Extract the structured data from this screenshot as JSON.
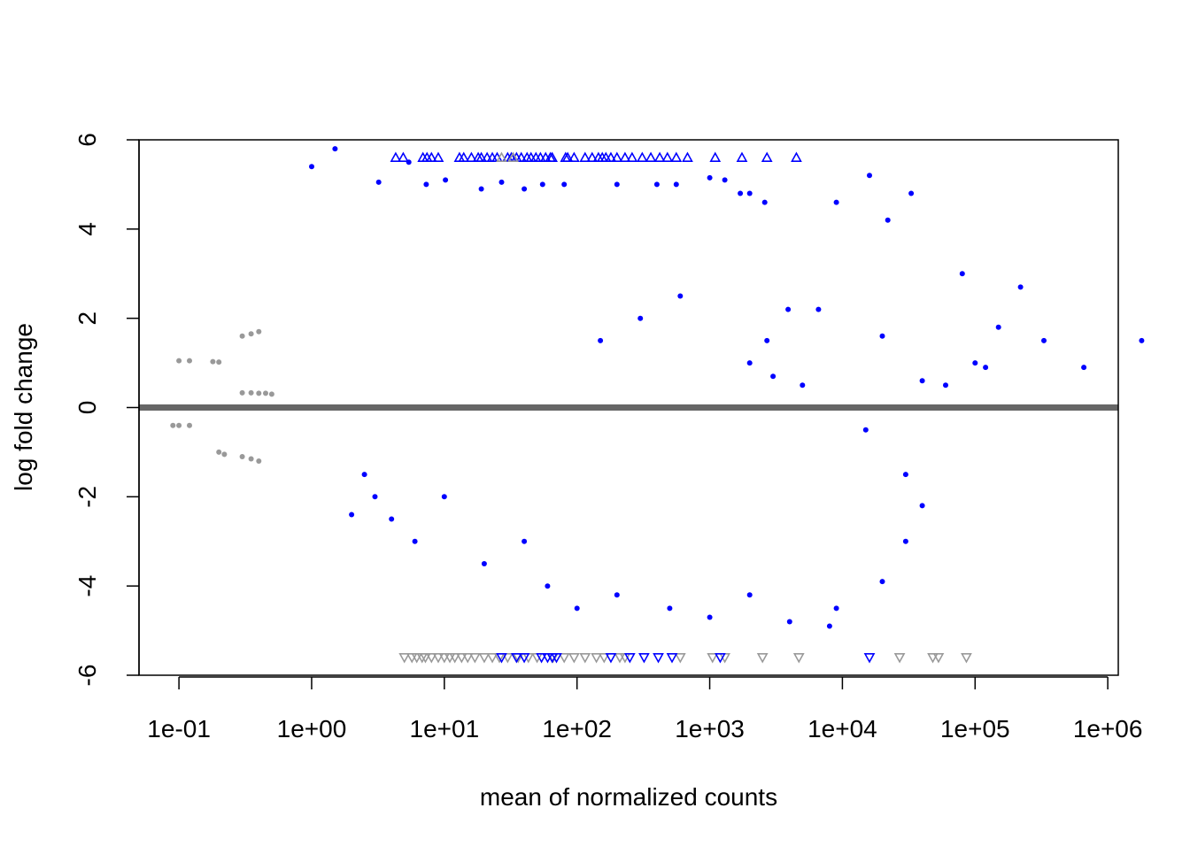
{
  "chart_data": {
    "type": "scatter",
    "title": "",
    "xlabel": "mean of normalized counts",
    "ylabel": "log fold change",
    "x_scale": "log10",
    "xlim": [
      0.05,
      1200000
    ],
    "ylim": [
      -6,
      6
    ],
    "x_ticks": [
      {
        "value": 0.1,
        "label": "1e-01"
      },
      {
        "value": 1,
        "label": "1e+00"
      },
      {
        "value": 10,
        "label": "1e+01"
      },
      {
        "value": 100,
        "label": "1e+02"
      },
      {
        "value": 1000,
        "label": "1e+03"
      },
      {
        "value": 10000,
        "label": "1e+04"
      },
      {
        "value": 100000,
        "label": "1e+05"
      },
      {
        "value": 1000000,
        "label": "1e+06"
      }
    ],
    "y_ticks": [
      {
        "value": -6,
        "label": "-6"
      },
      {
        "value": -4,
        "label": "-4"
      },
      {
        "value": -2,
        "label": "-2"
      },
      {
        "value": 0,
        "label": "0"
      },
      {
        "value": 2,
        "label": "2"
      },
      {
        "value": 4,
        "label": "4"
      },
      {
        "value": 6,
        "label": "6"
      }
    ],
    "reference_line": {
      "y": 0,
      "color": "#666666"
    },
    "grid": false,
    "colors": {
      "significant": "#0000ff",
      "not_significant": "#999999"
    },
    "series": [
      {
        "values": [
          [
            0.1,
            1.05
          ],
          [
            0.12,
            1.05
          ],
          [
            0.18,
            1.03
          ],
          [
            0.2,
            1.02
          ],
          [
            0.09,
            -0.4
          ],
          [
            0.1,
            -0.4
          ],
          [
            0.12,
            -0.4
          ],
          [
            0.3,
            0.33
          ],
          [
            0.35,
            0.33
          ],
          [
            0.4,
            0.32
          ],
          [
            0.45,
            0.32
          ],
          [
            0.5,
            0.3
          ],
          [
            0.3,
            1.6
          ],
          [
            0.35,
            1.65
          ],
          [
            0.4,
            1.7
          ],
          [
            0.3,
            -1.1
          ],
          [
            0.35,
            -1.15
          ],
          [
            0.4,
            -1.2
          ],
          [
            0.2,
            -1.0
          ],
          [
            0.22,
            -1.05
          ]
        ]
      },
      {
        "name": "",
        "values": [
          [
            1.0,
            5.4
          ],
          [
            1.5,
            5.8
          ],
          [
            3.2,
            5.05
          ],
          [
            7.3,
            5.0
          ],
          [
            5.4,
            5.5
          ],
          [
            10.2,
            5.1
          ],
          [
            19,
            4.9
          ],
          [
            27,
            5.05
          ],
          [
            40,
            4.9
          ],
          [
            55,
            5.0
          ],
          [
            80,
            5.0
          ],
          [
            200,
            5.0
          ],
          [
            400,
            5.0
          ],
          [
            560,
            5.0
          ],
          [
            1000,
            5.15
          ],
          [
            1300,
            5.1
          ],
          [
            2000,
            4.8
          ],
          [
            16000,
            5.2
          ],
          [
            33000,
            4.8
          ],
          [
            9000,
            4.6
          ],
          [
            1700,
            4.8
          ],
          [
            2600,
            4.6
          ],
          [
            22000,
            4.2
          ],
          [
            20000,
            1.6
          ],
          [
            2700,
            1.5
          ],
          [
            3900,
            2.2
          ],
          [
            6600,
            2.2
          ],
          [
            80000,
            3.0
          ],
          [
            1800000,
            1.5
          ],
          [
            330000,
            1.5
          ],
          [
            660000,
            0.9
          ],
          [
            220000,
            2.7
          ],
          [
            150000,
            1.8
          ],
          [
            100000,
            1.0
          ],
          [
            120000,
            0.9
          ],
          [
            600,
            2.5
          ],
          [
            300,
            2.0
          ],
          [
            150,
            1.5
          ],
          [
            2000,
            1.0
          ],
          [
            3000,
            0.7
          ],
          [
            5000,
            0.5
          ],
          [
            40000,
            0.6
          ],
          [
            60000,
            0.5
          ],
          [
            15000,
            -0.5
          ],
          [
            30000,
            -1.5
          ],
          [
            40000,
            -2.2
          ],
          [
            30000,
            -3.0
          ],
          [
            20000,
            -3.9
          ],
          [
            9000,
            -4.5
          ],
          [
            8000,
            -4.9
          ],
          [
            4000,
            -4.8
          ],
          [
            2000,
            -4.2
          ],
          [
            1000,
            -4.7
          ],
          [
            500,
            -4.5
          ],
          [
            200,
            -4.2
          ],
          [
            100,
            -4.5
          ],
          [
            60,
            -4.0
          ],
          [
            40,
            -3.0
          ],
          [
            20,
            -3.5
          ],
          [
            10,
            -2.0
          ],
          [
            6,
            -3.0
          ],
          [
            4,
            -2.5
          ],
          [
            3,
            -2.0
          ],
          [
            2,
            -2.4
          ],
          [
            2.5,
            -1.5
          ]
        ]
      }
    ],
    "capped_upper": {
      "y": 5.6,
      "blue_x": [
        4.3,
        4.9,
        6.9,
        7.4,
        8.0,
        9.0,
        13,
        14,
        16,
        18,
        19,
        21,
        23,
        25,
        30,
        32,
        35,
        38,
        42,
        45,
        49,
        53,
        58,
        63,
        65,
        82,
        85,
        95,
        115,
        130,
        145,
        155,
        165,
        180,
        200,
        230,
        260,
        310,
        360,
        420,
        480,
        560,
        680,
        1100,
        1750,
        2700,
        4500
      ],
      "grey_x": [
        27,
        33
      ]
    },
    "capped_lower": {
      "y": -5.6,
      "blue_x": [
        27,
        35,
        40,
        54,
        60,
        65,
        70,
        180,
        250,
        320,
        410,
        520,
        1200,
        16000
      ],
      "grey_x": [
        5,
        5.7,
        6.2,
        6.8,
        7.2,
        8,
        9,
        10,
        11,
        12,
        13.5,
        15,
        17,
        20,
        23,
        26,
        30,
        36,
        43,
        50,
        66,
        80,
        95,
        115,
        140,
        160,
        210,
        230,
        600,
        1050,
        1300,
        2500,
        4700,
        27000,
        48000,
        53000,
        86000
      ]
    }
  }
}
